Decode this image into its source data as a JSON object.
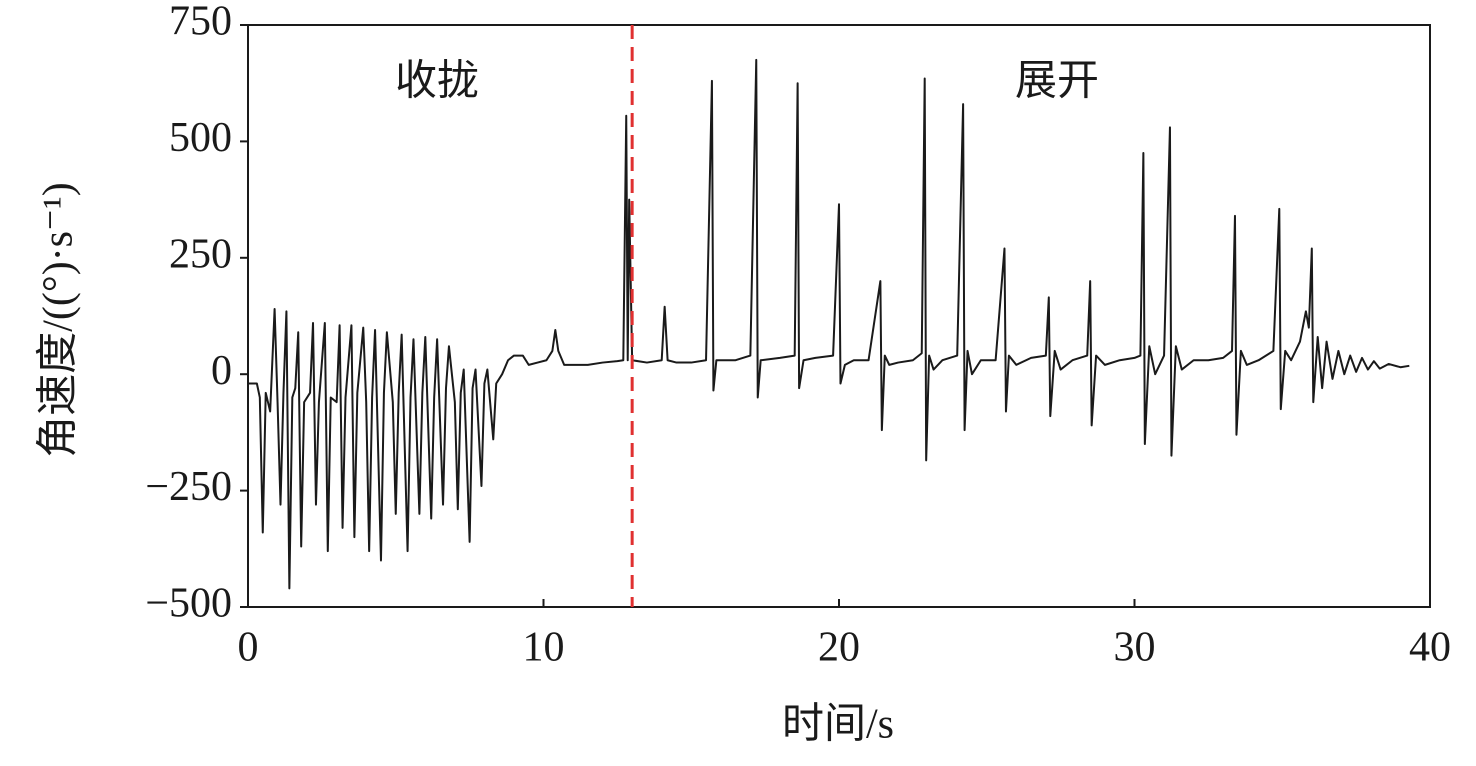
{
  "chart_data": {
    "type": "line",
    "xlabel": "时间/s",
    "ylabel": "角速度/((°)·s⁻¹)",
    "annotations": [
      "收拢",
      "展开"
    ],
    "vline": {
      "x": 13,
      "color": "#e03030"
    },
    "xlim": [
      0,
      40
    ],
    "xticks": [
      0,
      10,
      20,
      30,
      40
    ],
    "ylim": [
      -500,
      750
    ],
    "yticks": [
      {
        "value": -500,
        "label": "−500"
      },
      {
        "value": -250,
        "label": "−250"
      },
      0,
      250,
      500,
      750
    ],
    "x": [
      0,
      0.3,
      0.4,
      0.5,
      0.6,
      0.75,
      0.9,
      1.0,
      1.1,
      1.2,
      1.3,
      1.4,
      1.5,
      1.6,
      1.7,
      1.8,
      1.9,
      2.1,
      2.2,
      2.3,
      2.4,
      2.6,
      2.7,
      2.8,
      3.0,
      3.1,
      3.2,
      3.3,
      3.5,
      3.6,
      3.7,
      3.9,
      4.0,
      4.1,
      4.2,
      4.3,
      4.5,
      4.6,
      4.7,
      4.9,
      5.0,
      5.1,
      5.2,
      5.4,
      5.5,
      5.6,
      5.8,
      5.9,
      6.0,
      6.2,
      6.3,
      6.4,
      6.6,
      6.7,
      6.8,
      7.0,
      7.1,
      7.2,
      7.3,
      7.5,
      7.6,
      7.7,
      7.9,
      8.0,
      8.1,
      8.3,
      8.4,
      8.6,
      8.8,
      9.0,
      9.3,
      9.5,
      9.8,
      10.1,
      10.3,
      10.4,
      10.5,
      10.7,
      11.5,
      12.0,
      12.5,
      12.7,
      12.8,
      12.85,
      12.9,
      13.0,
      13.5,
      14.0,
      14.1,
      14.2,
      14.5,
      15.0,
      15.5,
      15.7,
      15.75,
      15.85,
      16.5,
      17.0,
      17.2,
      17.25,
      17.35,
      18.0,
      18.5,
      18.6,
      18.65,
      18.8,
      19.2,
      19.8,
      20.0,
      20.05,
      20.2,
      20.5,
      21.0,
      21.4,
      21.45,
      21.55,
      21.7,
      22.0,
      22.5,
      22.8,
      22.9,
      22.95,
      23.05,
      23.2,
      23.5,
      24.0,
      24.2,
      24.25,
      24.35,
      24.5,
      24.8,
      25.3,
      25.6,
      25.65,
      25.75,
      26.0,
      26.5,
      27.0,
      27.1,
      27.15,
      27.3,
      27.5,
      27.9,
      28.4,
      28.5,
      28.55,
      28.7,
      29.0,
      29.5,
      30.0,
      30.2,
      30.3,
      30.35,
      30.5,
      30.7,
      31.0,
      31.2,
      31.25,
      31.4,
      31.6,
      32.0,
      32.5,
      33.0,
      33.3,
      33.4,
      33.45,
      33.6,
      33.8,
      34.2,
      34.7,
      34.9,
      34.95,
      35.1,
      35.3,
      35.6,
      35.8,
      35.9,
      36.0,
      36.05,
      36.2,
      36.35,
      36.5,
      36.7,
      36.9,
      37.1,
      37.3,
      37.5,
      37.7,
      37.9,
      38.1,
      38.3,
      38.6,
      39.0,
      39.3
    ],
    "series": [
      {
        "color": "#1a1a1a",
        "values": [
          -20,
          -20,
          -50,
          -340,
          -40,
          -80,
          140,
          -60,
          -280,
          -40,
          135,
          -460,
          -50,
          -30,
          90,
          -370,
          -60,
          -40,
          110,
          -280,
          -60,
          110,
          -380,
          -50,
          -60,
          105,
          -330,
          -50,
          105,
          -350,
          -40,
          100,
          -60,
          -380,
          -50,
          95,
          -400,
          -40,
          90,
          -60,
          -300,
          -40,
          85,
          -380,
          -50,
          75,
          -300,
          -40,
          80,
          -310,
          -50,
          75,
          -280,
          -30,
          60,
          -60,
          -290,
          -40,
          10,
          -360,
          -30,
          10,
          -240,
          -20,
          10,
          -140,
          -20,
          0,
          30,
          40,
          40,
          20,
          25,
          30,
          50,
          95,
          50,
          20,
          20,
          25,
          28,
          30,
          555,
          30,
          375,
          30,
          25,
          30,
          145,
          30,
          25,
          25,
          30,
          630,
          -35,
          30,
          30,
          40,
          675,
          -50,
          30,
          35,
          40,
          625,
          -30,
          30,
          35,
          40,
          365,
          -20,
          20,
          30,
          30,
          200,
          -120,
          40,
          20,
          25,
          30,
          45,
          635,
          -185,
          40,
          10,
          30,
          40,
          580,
          -120,
          50,
          0,
          30,
          30,
          270,
          -80,
          40,
          20,
          35,
          40,
          165,
          -90,
          50,
          10,
          30,
          40,
          200,
          -110,
          40,
          20,
          30,
          35,
          40,
          475,
          -150,
          60,
          0,
          40,
          530,
          -175,
          60,
          10,
          30,
          30,
          35,
          50,
          340,
          -130,
          50,
          20,
          30,
          50,
          355,
          -75,
          50,
          30,
          70,
          135,
          100,
          270,
          -60,
          80,
          -30,
          70,
          -10,
          50,
          0,
          40,
          5,
          35,
          10,
          28,
          12,
          22,
          15,
          18
        ]
      }
    ]
  }
}
